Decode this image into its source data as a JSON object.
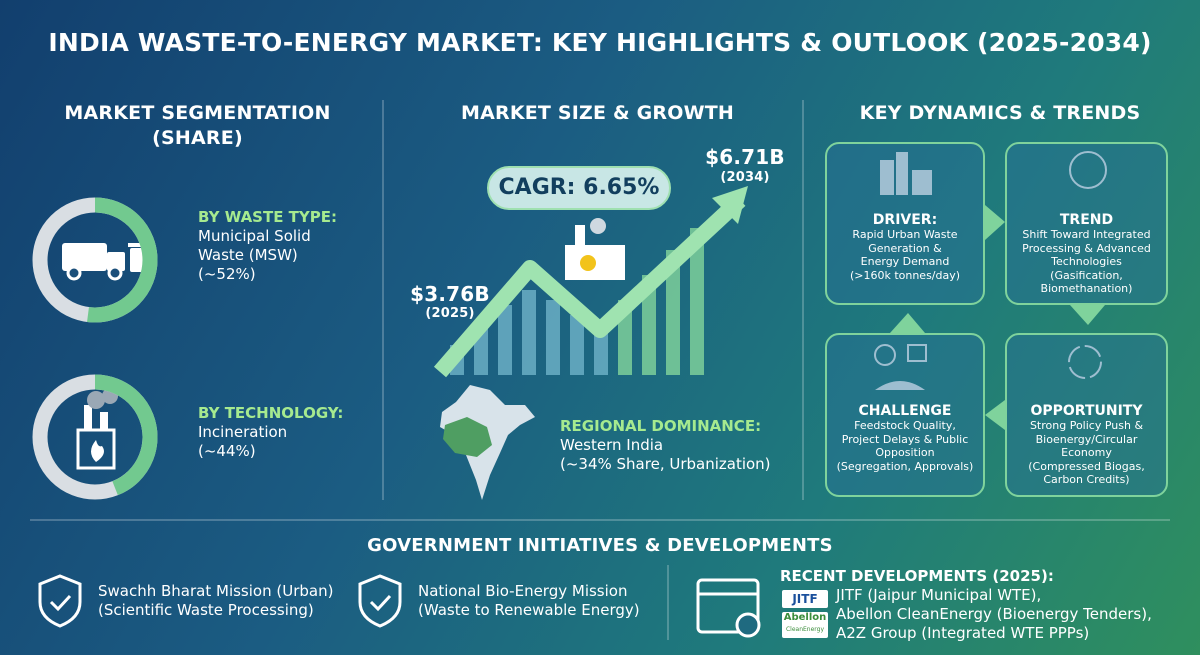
{
  "header": {
    "title": "INDIA WASTE-TO-ENERGY MARKET: KEY HIGHLIGHTS & OUTLOOK (2025-2034)"
  },
  "segmentation": {
    "title": [
      "MARKET SEGMENTATION",
      "(SHARE)"
    ],
    "items": [
      {
        "heading": "BY WASTE TYPE:",
        "lines": [
          "Municipal Solid",
          "Waste (MSW)"
        ],
        "label": "(~52%)",
        "share": 52
      },
      {
        "heading": "BY TECHNOLOGY:",
        "lines": [
          "Incineration"
        ],
        "label": "(~44%)",
        "share": 44
      }
    ]
  },
  "growth": {
    "title": "MARKET SIZE & GROWTH",
    "cagr": "CAGR: 6.65%",
    "start": {
      "value": "$3.76B",
      "year": "(2025)"
    },
    "end": {
      "value": "$6.71B",
      "year": "(2034)"
    },
    "region": {
      "heading": "REGIONAL DOMINANCE:",
      "lines": [
        "Western India",
        "(~34% Share, Urbanization)"
      ]
    }
  },
  "dynamics": {
    "title": "KEY DYNAMICS & TRENDS",
    "cards": [
      {
        "heading": "DRIVER:",
        "lines": [
          "Rapid Urban Waste",
          "Generation &",
          "Energy Demand",
          "(>160k tonnes/day)"
        ]
      },
      {
        "heading": "TREND",
        "lines": [
          "Shift Toward Integrated",
          "Processing & Advanced",
          "Technologies",
          "(Gasification,",
          "Biomethanation)"
        ]
      },
      {
        "heading": "CHALLENGE",
        "lines": [
          "Feedstock Quality,",
          "Project Delays & Public",
          "Opposition",
          "(Segregation, Approvals)"
        ]
      },
      {
        "heading": "OPPORTUNITY",
        "lines": [
          "Strong Policy Push &",
          "Bioenergy/Circular",
          "Economy",
          "(Compressed Biogas,",
          "Carbon Credits)"
        ]
      }
    ]
  },
  "government": {
    "title": "GOVERNMENT INITIATIVES & DEVELOPMENTS",
    "initiatives": [
      [
        "Swachh Bharat Mission (Urban)",
        "(Scientific Waste Processing)"
      ],
      [
        "National Bio-Energy Mission",
        "(Waste to Renewable Energy)"
      ]
    ],
    "recent": {
      "heading": "RECENT DEVELOPMENTS (2025):",
      "lines": [
        "JITF (Jaipur Municipal WTE),",
        "Abellon CleanEnergy (Bioenergy Tenders),",
        "A2Z Group (Integrated WTE PPPs)"
      ],
      "logos": [
        "JITF",
        "Abellon",
        "CleanEnergy"
      ]
    }
  }
}
